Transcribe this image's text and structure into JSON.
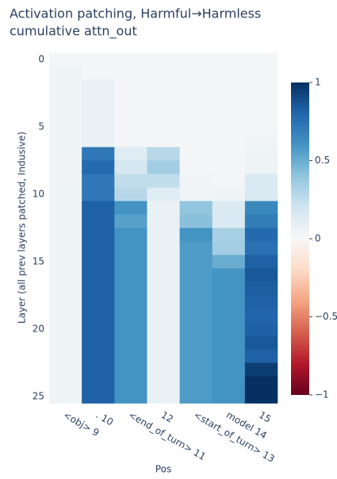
{
  "chart_data": {
    "type": "heatmap",
    "title": [
      "Activation patching, Harmful→Harmless",
      "cumulative attn_out"
    ],
    "x_label": "Pos",
    "y_label": "Layer (all prev layers patched, Indusive)",
    "categories": [
      "<obj> 9",
      ". 10",
      "<end_of_turn> 11",
      "12",
      "<start_of_turn> 13",
      "model 14",
      "15"
    ],
    "y": [
      0,
      1,
      2,
      3,
      4,
      5,
      6,
      7,
      8,
      9,
      10,
      11,
      12,
      13,
      14,
      15,
      16,
      17,
      18,
      19,
      20,
      21,
      22,
      23,
      24,
      25
    ],
    "ylim": [
      25.5,
      -0.5
    ],
    "yticks": [
      0,
      5,
      10,
      15,
      20,
      25
    ],
    "z": [
      [
        0.02,
        0.02,
        0.02,
        0.02,
        0.02,
        0.02,
        0.02
      ],
      [
        0.05,
        0.02,
        0.02,
        0.02,
        0.02,
        0.02,
        0.02
      ],
      [
        0.05,
        0.07,
        0.02,
        0.02,
        0.02,
        0.02,
        0.02
      ],
      [
        0.05,
        0.07,
        0.02,
        0.02,
        0.02,
        0.02,
        0.02
      ],
      [
        0.05,
        0.07,
        0.02,
        0.02,
        0.02,
        0.02,
        0.02
      ],
      [
        0.05,
        0.07,
        0.02,
        0.02,
        0.02,
        0.02,
        0.02
      ],
      [
        0.05,
        0.07,
        0.02,
        0.02,
        0.02,
        0.02,
        0.03
      ],
      [
        0.04,
        0.72,
        0.12,
        0.28,
        0.02,
        0.02,
        0.05
      ],
      [
        0.04,
        0.78,
        0.18,
        0.35,
        0.02,
        0.02,
        0.05
      ],
      [
        0.04,
        0.72,
        0.25,
        0.25,
        0.03,
        0.02,
        0.15
      ],
      [
        0.05,
        0.72,
        0.28,
        0.12,
        0.03,
        0.05,
        0.15
      ],
      [
        0.05,
        0.82,
        0.6,
        0.07,
        0.4,
        0.15,
        0.65
      ],
      [
        0.05,
        0.82,
        0.55,
        0.07,
        0.42,
        0.15,
        0.7
      ],
      [
        0.05,
        0.82,
        0.6,
        0.07,
        0.6,
        0.33,
        0.78
      ],
      [
        0.05,
        0.82,
        0.6,
        0.07,
        0.57,
        0.35,
        0.75
      ],
      [
        0.05,
        0.82,
        0.6,
        0.07,
        0.57,
        0.5,
        0.82
      ],
      [
        0.05,
        0.82,
        0.6,
        0.07,
        0.57,
        0.6,
        0.85
      ],
      [
        0.05,
        0.82,
        0.6,
        0.07,
        0.57,
        0.6,
        0.83
      ],
      [
        0.05,
        0.82,
        0.6,
        0.07,
        0.57,
        0.6,
        0.82
      ],
      [
        0.05,
        0.82,
        0.6,
        0.07,
        0.57,
        0.6,
        0.8
      ],
      [
        0.05,
        0.82,
        0.6,
        0.07,
        0.57,
        0.6,
        0.82
      ],
      [
        0.05,
        0.82,
        0.6,
        0.07,
        0.57,
        0.6,
        0.85
      ],
      [
        0.05,
        0.82,
        0.6,
        0.07,
        0.57,
        0.6,
        0.82
      ],
      [
        0.05,
        0.82,
        0.6,
        0.07,
        0.57,
        0.6,
        0.95
      ],
      [
        0.05,
        0.82,
        0.6,
        0.07,
        0.57,
        0.6,
        1.0
      ],
      [
        0.05,
        0.82,
        0.6,
        0.07,
        0.57,
        0.6,
        1.0
      ]
    ],
    "zlim": [
      -1,
      1
    ],
    "zticks": [
      {
        "value": -1,
        "label": "−1"
      },
      {
        "value": -0.5,
        "label": "−0.5"
      },
      0,
      0.5,
      1
    ],
    "colorscale": [
      "#67001f",
      "#b2182b",
      "#d6604d",
      "#f4a582",
      "#fddbc7",
      "#f7f7f7",
      "#d1e5f0",
      "#92c5de",
      "#4393c3",
      "#2166ac",
      "#053061"
    ]
  }
}
